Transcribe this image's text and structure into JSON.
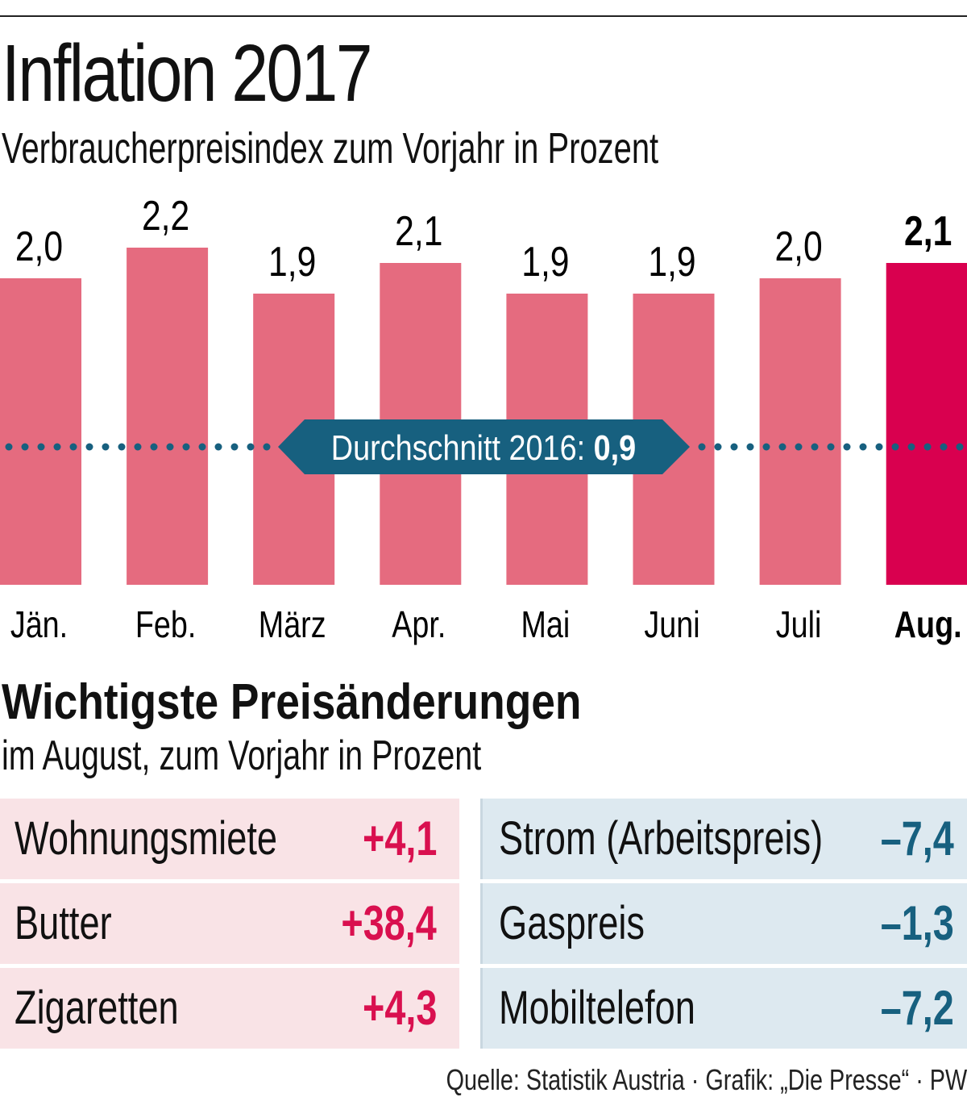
{
  "header": {
    "title": "Inflation 2017",
    "subtitle": "Verbraucherpreisindex zum Vorjahr in Prozent"
  },
  "colors": {
    "bar": "#e56b7f",
    "bar_highlight": "#d9004f",
    "avg_line": "#17607f",
    "positive": "#d9104f",
    "negative": "#17607f",
    "positive_bg": "#f9e3e6",
    "negative_bg": "#dde9f0"
  },
  "chart_data": {
    "type": "bar",
    "title": "Inflation 2017",
    "subtitle": "Verbraucherpreisindex zum Vorjahr in Prozent",
    "xlabel": "",
    "ylabel": "",
    "categories": [
      "Jän.",
      "Feb.",
      "März",
      "Apr.",
      "Mai",
      "Juni",
      "Juli",
      "Aug."
    ],
    "values": [
      2.0,
      2.2,
      1.9,
      2.1,
      1.9,
      1.9,
      2.0,
      2.1
    ],
    "value_labels": [
      "2,0",
      "2,2",
      "1,9",
      "2,1",
      "1,9",
      "1,9",
      "2,0",
      "2,1"
    ],
    "highlight_index": 7,
    "ylim": [
      0,
      2.2
    ],
    "grid": false,
    "reference_line": {
      "value": 0.9,
      "label": "Durchschnitt 2016:",
      "value_label": "0,9",
      "style": "dotted"
    }
  },
  "changes": {
    "title": "Wichtigste Preisänderungen",
    "subtitle": "im August, zum Vorjahr in Prozent",
    "increases": [
      {
        "name": "Wohnungsmiete",
        "value": "+4,1"
      },
      {
        "name": "Butter",
        "value": "+38,4"
      },
      {
        "name": "Zigaretten",
        "value": "+4,3"
      }
    ],
    "decreases": [
      {
        "name": "Strom (Arbeitspreis)",
        "value": "–7,4"
      },
      {
        "name": "Gaspreis",
        "value": "–1,3"
      },
      {
        "name": "Mobiltelefon",
        "value": "–7,2"
      }
    ]
  },
  "footer": {
    "source": "Quelle: Statistik Austria · Grafik: „Die Presse“ · PW"
  }
}
